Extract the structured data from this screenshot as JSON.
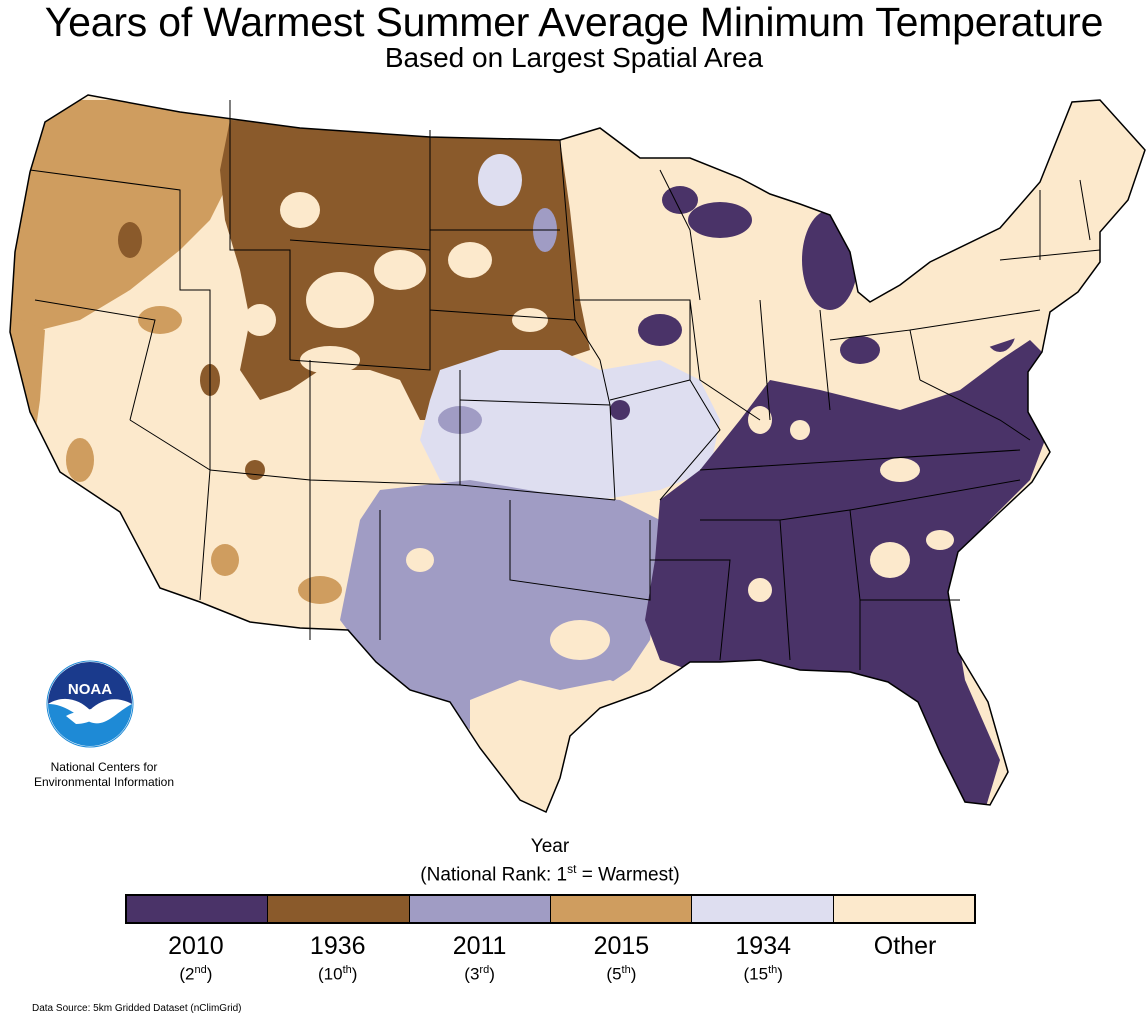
{
  "title": "Years of Warmest Summer Average Minimum Temperature",
  "subtitle": "Based on Largest Spatial Area",
  "organization": {
    "logo_text": "NOAA",
    "name_line1": "National Centers for",
    "name_line2": "Environmental Information"
  },
  "legend": {
    "heading": "Year",
    "rank_prefix": "(National Rank: 1",
    "rank_sup": "st",
    "rank_suffix": " = Warmest)",
    "items": [
      {
        "year": "2010",
        "rank_num": "2",
        "rank_sup": "nd",
        "color": "#4a3368"
      },
      {
        "year": "1936",
        "rank_num": "10",
        "rank_sup": "th",
        "color": "#8a5a2b"
      },
      {
        "year": "2011",
        "rank_num": "3",
        "rank_sup": "rd",
        "color": "#a09cc4"
      },
      {
        "year": "2015",
        "rank_num": "5",
        "rank_sup": "th",
        "color": "#cf9d5f"
      },
      {
        "year": "1934",
        "rank_num": "15",
        "rank_sup": "th",
        "color": "#dedef0"
      },
      {
        "year": "Other",
        "rank_num": "",
        "rank_sup": "",
        "color": "#fce9cc"
      }
    ]
  },
  "source": "Data Source: 5km Gridded Dataset (nClimGrid)",
  "colors": {
    "base": "#fce9cc",
    "y2010": "#4a3368",
    "y1936": "#8a5a2b",
    "y2011": "#a09cc4",
    "y2015": "#cf9d5f",
    "y1934": "#dedef0",
    "noaa_blue": "#1e8ad6"
  }
}
